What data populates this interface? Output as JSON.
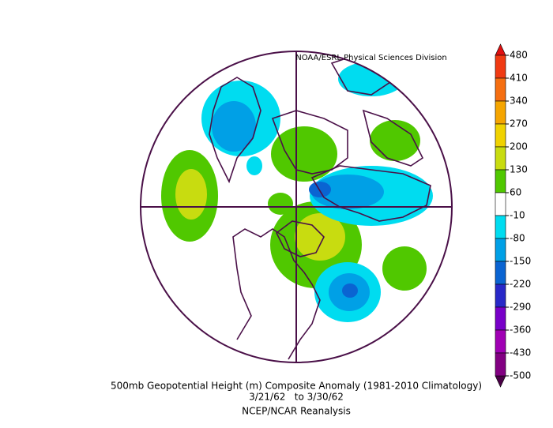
{
  "credit": "NOAA/ESRL Physical Sciences Division",
  "title": "500mb Geopotential Height (m) Composite Anomaly (1981-2010 Climatology)",
  "dates": "3/21/62   to 3/30/62",
  "source": "NCEP/NCAR Reanalysis",
  "colorbar": {
    "ticks": [
      480,
      410,
      340,
      270,
      200,
      130,
      60,
      -10,
      -80,
      -150,
      -220,
      -290,
      -360,
      -430,
      -500
    ],
    "colors": [
      "#e01010",
      "#f03a12",
      "#f56e10",
      "#f5a500",
      "#f0d200",
      "#c8dc10",
      "#50c800",
      "#ffffff",
      "#00dcf0",
      "#00a0e6",
      "#0a64d2",
      "#2828c8",
      "#7800c8",
      "#a000b4",
      "#820082",
      "#4a0046"
    ]
  }
}
